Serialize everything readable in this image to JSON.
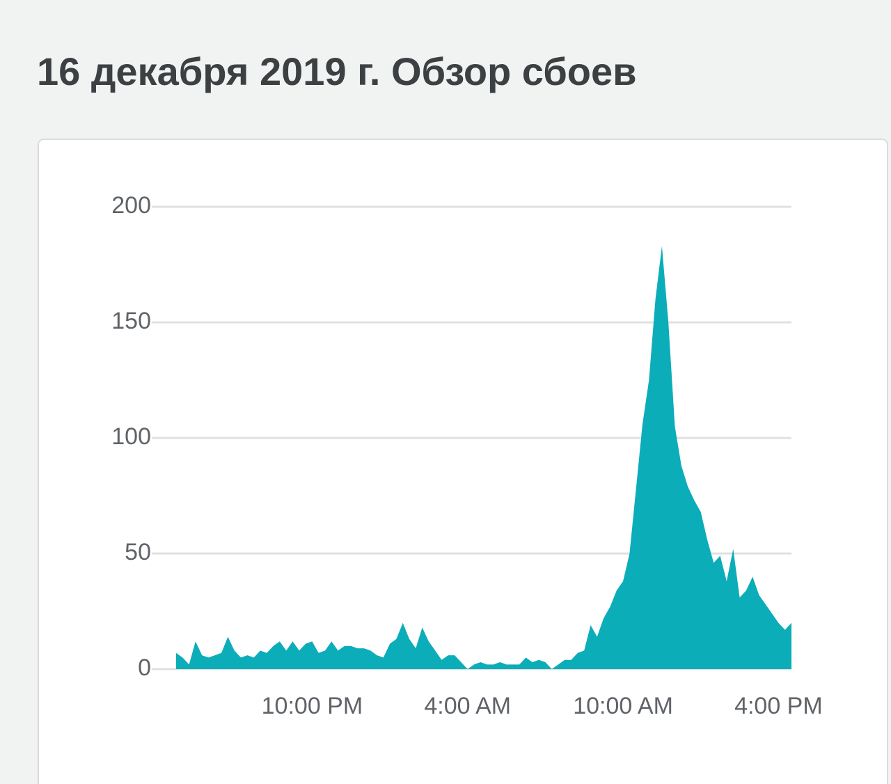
{
  "chart_data": {
    "type": "area",
    "title": "16 декабря 2019 г. Обзор сбоев",
    "color": "#0badb9",
    "grid": true,
    "categories": [
      null,
      null,
      null,
      null,
      null,
      null,
      null,
      null,
      null,
      null,
      null,
      null,
      null,
      null,
      null,
      null,
      null,
      null,
      null,
      null,
      null,
      "10:00 PM",
      null,
      null,
      null,
      null,
      null,
      null,
      null,
      null,
      null,
      null,
      null,
      null,
      null,
      null,
      null,
      null,
      null,
      null,
      null,
      null,
      null,
      null,
      null,
      "4:00 AM",
      null,
      null,
      null,
      null,
      null,
      null,
      null,
      null,
      null,
      null,
      null,
      null,
      null,
      null,
      null,
      null,
      null,
      null,
      null,
      null,
      null,
      null,
      null,
      "10:00 AM",
      null,
      null,
      null,
      null,
      null,
      null,
      null,
      null,
      null,
      null,
      null,
      null,
      null,
      null,
      null,
      null,
      null,
      null,
      null,
      null,
      null,
      null,
      null,
      "4:00 PM",
      null,
      null
    ],
    "values": [
      7,
      5,
      2,
      12,
      6,
      5,
      6,
      7,
      14,
      8,
      5,
      6,
      5,
      8,
      7,
      10,
      12,
      8,
      12,
      8,
      11,
      12,
      7,
      8,
      12,
      8,
      10,
      10,
      9,
      9,
      8,
      6,
      5,
      11,
      13,
      20,
      13,
      9,
      18,
      12,
      8,
      4,
      6,
      6,
      3,
      0,
      2,
      3,
      2,
      2,
      3,
      2,
      2,
      2,
      5,
      3,
      4,
      3,
      0,
      2,
      4,
      4,
      7,
      8,
      19,
      14,
      22,
      27,
      34,
      38,
      50,
      78,
      106,
      125,
      160,
      183,
      150,
      105,
      88,
      79,
      73,
      68,
      56,
      46,
      49,
      38,
      52,
      31,
      34,
      40,
      32,
      28,
      24,
      20,
      17,
      20
    ],
    "ylim": [
      0,
      200
    ],
    "yticks": [
      0,
      50,
      100,
      150,
      200
    ]
  }
}
